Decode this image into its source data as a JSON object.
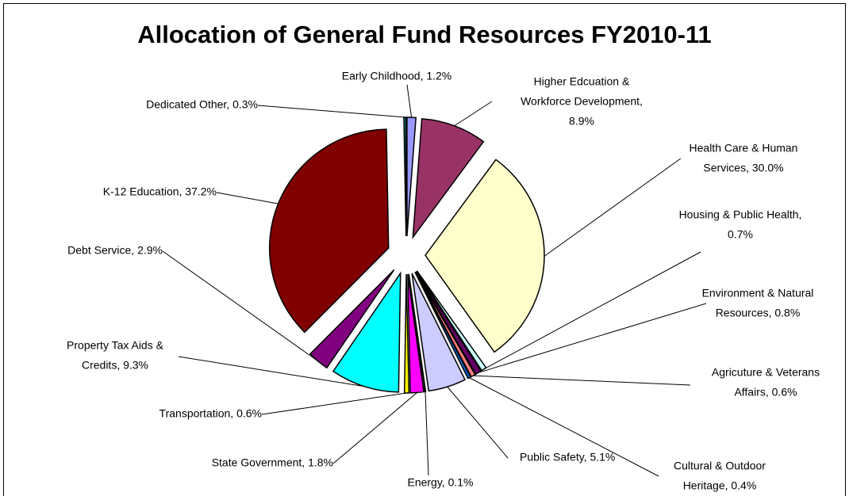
{
  "chart_data": {
    "type": "pie",
    "title": "Allocation of General Fund Resources FY2010-11",
    "labels": [
      [
        "Early Childhood, 1.2%"
      ],
      [
        "Higher Edcuation &",
        "Workforce Development,",
        "8.9%"
      ],
      [
        "Health Care & Human",
        "Services, 30.0%"
      ],
      [
        "Housing & Public Health,",
        "0.7%"
      ],
      [
        "Environment & Natural",
        "Resources, 0.8%"
      ],
      [
        "Agricuture & Veterans",
        "Affairs, 0.6%"
      ],
      [
        "Cultural & Outdoor",
        "Heritage, 0.4%"
      ],
      [
        "Public Safety, 5.1%"
      ],
      [
        "Energy, 0.1%"
      ],
      [
        "State Government, 1.8%"
      ],
      [
        "Transportation, 0.6%"
      ],
      [
        "Property Tax Aids &",
        "Credits, 9.3%"
      ],
      [
        "Debt Service, 2.9%"
      ],
      [
        "K-12 Education, 37.2%"
      ],
      [
        "Dedicated Other, 0.3%"
      ]
    ],
    "values": [
      1.2,
      8.9,
      30.0,
      0.7,
      0.8,
      0.6,
      0.4,
      5.1,
      0.1,
      1.8,
      0.6,
      9.3,
      2.9,
      37.2,
      0.3
    ],
    "colors": [
      "#9999ff",
      "#993366",
      "#ffffcc",
      "#ccffff",
      "#660066",
      "#ff8080",
      "#0066cc",
      "#ccccff",
      "#000080",
      "#ff00ff",
      "#ffff00",
      "#00ffff",
      "#800080",
      "#800000",
      "#008080"
    ],
    "exploded": true
  }
}
